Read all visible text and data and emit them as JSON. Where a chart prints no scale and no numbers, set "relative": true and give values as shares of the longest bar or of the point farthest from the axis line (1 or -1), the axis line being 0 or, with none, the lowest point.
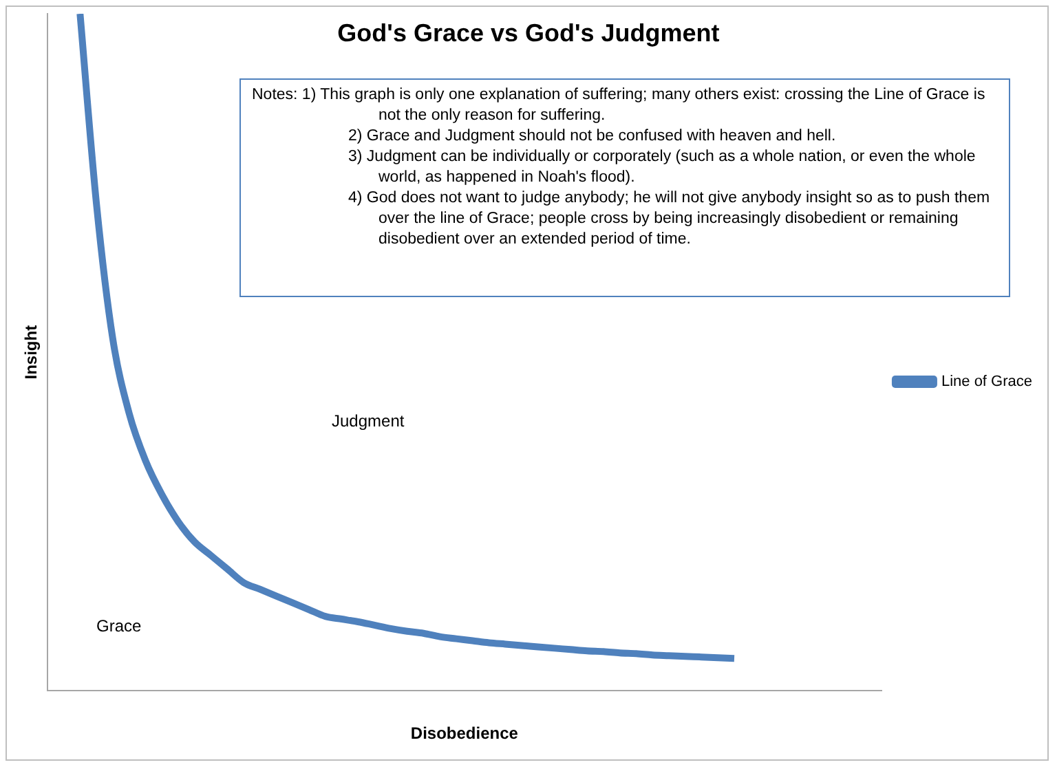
{
  "chart_data": {
    "type": "line",
    "title": "God's Grace vs God's Judgment",
    "xlabel": "Disobedience",
    "ylabel": "Insight",
    "relative": true,
    "grid": false,
    "legend": "right",
    "marker": "none",
    "line_style": "solid",
    "categories": [
      null,
      null,
      null,
      null,
      null,
      null,
      null,
      null,
      null,
      null,
      null,
      null,
      null,
      null,
      null,
      null,
      null,
      null,
      null,
      null,
      null,
      null,
      null,
      null,
      null,
      null,
      null,
      null,
      null,
      null,
      null,
      null,
      null,
      null,
      null,
      null,
      null,
      null,
      null,
      null,
      null,
      null,
      null,
      null,
      null,
      null,
      null,
      null,
      null,
      null,
      null,
      null
    ],
    "series": [
      {
        "name": "Line of Grace",
        "color": "#4f81bd",
        "values": [
          null,
          null,
          1,
          0.72,
          0.52,
          0.41,
          0.34,
          0.29,
          0.25,
          0.22,
          0.2,
          0.18,
          0.16,
          0.15,
          0.14,
          0.13,
          0.12,
          0.11,
          0.106,
          0.102,
          0.097,
          0.092,
          0.088,
          0.085,
          0.08,
          0.077,
          0.074,
          0.071,
          0.069,
          0.067,
          0.065,
          0.063,
          0.061,
          0.059,
          0.058,
          0.056,
          0.055,
          0.053,
          0.052,
          0.051,
          0.05,
          0.049,
          0.048,
          null,
          null,
          null,
          null,
          null,
          null,
          null,
          null,
          null
        ]
      }
    ],
    "annotations": [
      "Notes:  1)  This graph is only one explanation of suffering; many others exist:  crossing the Line of Grace is not the only reason for suffering.",
      "2)  Grace and Judgment should not be confused with heaven and hell.",
      "3)  Judgment can be individually or corporately (such as a whole nation, or even the whole world, as happened in Noah's flood).",
      "4) God does not want to judge anybody; he will not give anybody insight so as to push them over the line of Grace; people cross by being increasingly disobedient or remaining disobedient over an extended period of time.",
      "Judgment",
      "Grace"
    ]
  }
}
